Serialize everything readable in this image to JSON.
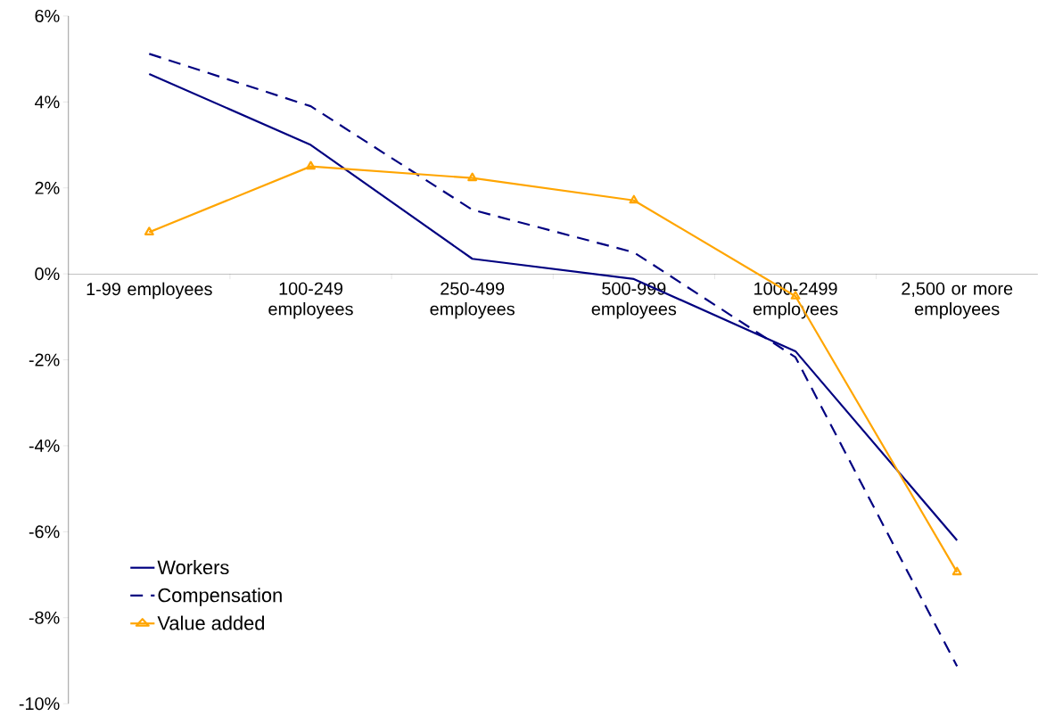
{
  "chart_data": {
    "type": "line",
    "categories": [
      "1-99 employees",
      "100-249 employees",
      "250-499 employees",
      "500-999 employees",
      "1000-2499 employees",
      "2,500 or more employees"
    ],
    "series": [
      {
        "name": "Workers",
        "color": "#000080",
        "line_style": "solid",
        "marker": "none",
        "values": [
          4.65,
          3.0,
          0.35,
          -0.12,
          -1.8,
          -6.2
        ]
      },
      {
        "name": "Compensation",
        "color": "#000080",
        "line_style": "dashed",
        "marker": "none",
        "values": [
          5.12,
          3.9,
          1.49,
          0.5,
          -1.94,
          -9.13
        ]
      },
      {
        "name": "Value added",
        "color": "#ffa500",
        "line_style": "solid",
        "marker": "triangle",
        "values": [
          0.97,
          2.5,
          2.23,
          1.71,
          -0.52,
          -6.94
        ]
      }
    ],
    "ylim": [
      -10,
      6
    ],
    "yticks": [
      {
        "value": -10,
        "label": "-10%"
      },
      {
        "value": -8,
        "label": "-8%"
      },
      {
        "value": -6,
        "label": "-6%"
      },
      {
        "value": -4,
        "label": "-4%"
      },
      {
        "value": -2,
        "label": "-2%"
      },
      {
        "value": 0,
        "label": "0%"
      },
      {
        "value": 2,
        "label": "2%"
      },
      {
        "value": 4,
        "label": "4%"
      },
      {
        "value": 6,
        "label": "6%"
      }
    ],
    "grid": false,
    "legend": "bottom left"
  }
}
